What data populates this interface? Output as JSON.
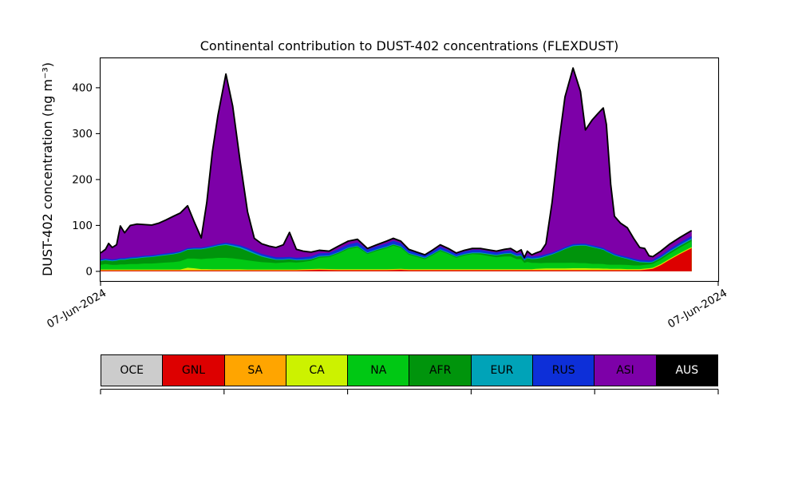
{
  "chart_data": {
    "type": "area",
    "stacked": true,
    "title": "Continental contribution to DUST-402 concentrations (FLEXDUST)",
    "xlabel": "",
    "ylabel": "DUST-402 concentration (ng m⁻³)",
    "grid": false,
    "legend_position": "bottom",
    "ylim": [
      -21,
      466
    ],
    "yticks": [
      0,
      100,
      200,
      300,
      400
    ],
    "xtick_positions": [
      0,
      1
    ],
    "xtick_labels": [
      "07-Jun-2024",
      "07-Jun-2024"
    ],
    "outline_color": "#000000",
    "x": [
      0.0,
      0.008,
      0.013,
      0.019,
      0.026,
      0.032,
      0.039,
      0.048,
      0.059,
      0.071,
      0.083,
      0.094,
      0.106,
      0.118,
      0.129,
      0.141,
      0.151,
      0.163,
      0.172,
      0.181,
      0.19,
      0.203,
      0.214,
      0.226,
      0.238,
      0.249,
      0.261,
      0.273,
      0.284,
      0.296,
      0.306,
      0.317,
      0.328,
      0.341,
      0.354,
      0.37,
      0.385,
      0.401,
      0.416,
      0.432,
      0.447,
      0.463,
      0.474,
      0.486,
      0.499,
      0.512,
      0.525,
      0.537,
      0.55,
      0.563,
      0.576,
      0.589,
      0.602,
      0.615,
      0.628,
      0.641,
      0.654,
      0.664,
      0.674,
      0.681,
      0.686,
      0.691,
      0.698,
      0.705,
      0.713,
      0.721,
      0.731,
      0.742,
      0.752,
      0.765,
      0.777,
      0.785,
      0.796,
      0.806,
      0.814,
      0.819,
      0.826,
      0.832,
      0.842,
      0.853,
      0.863,
      0.873,
      0.881,
      0.888,
      0.894,
      0.907,
      0.922,
      0.938,
      0.948,
      0.957
    ],
    "series": [
      {
        "name": "OCE",
        "color": "#cccccc",
        "values": 0.4
      },
      {
        "name": "GNL",
        "color": "#dd0000",
        "values": [
          1.5,
          1.5,
          1.5,
          1.5,
          1.5,
          1.5,
          1.5,
          1.5,
          1.5,
          1.5,
          1.5,
          1.5,
          1.5,
          1.5,
          1.5,
          1.5,
          1.5,
          1.5,
          1.5,
          1.5,
          1.5,
          1.5,
          1.5,
          1.5,
          1.5,
          1.5,
          1.5,
          1.5,
          1.5,
          1.5,
          1.5,
          1.5,
          2,
          2.5,
          3,
          2.5,
          2,
          2,
          2,
          2,
          2,
          2,
          2.5,
          3,
          2,
          2,
          2,
          2,
          2,
          2,
          2,
          2,
          2,
          2,
          2,
          2,
          2,
          2,
          2,
          2,
          2,
          2,
          2,
          2,
          2,
          2,
          2,
          2,
          2,
          2,
          2,
          2,
          2,
          2,
          2,
          2,
          2,
          2,
          2,
          2,
          2,
          2,
          3,
          4,
          5,
          13,
          25,
          37,
          44,
          50
        ]
      },
      {
        "name": "SA",
        "color": "#ffa500",
        "values": 1
      },
      {
        "name": "CA",
        "color": "#ccf200",
        "values": [
          1.2,
          1.2,
          1.2,
          1.2,
          1.2,
          1.2,
          1.2,
          1.2,
          1.2,
          1.2,
          1.2,
          1.2,
          1.2,
          1.2,
          1.2,
          5,
          4,
          2,
          2,
          1.5,
          1.5,
          1.5,
          1.5,
          1.5,
          1.2,
          1.2,
          1.2,
          1.2,
          1.2,
          1.2,
          1.2,
          1.2,
          1.2,
          1.2,
          1.2,
          1.2,
          1.2,
          1.2,
          1.2,
          1.2,
          1.2,
          1.2,
          1.2,
          1.2,
          1.2,
          1.2,
          1.2,
          1.2,
          1.2,
          1.2,
          1.2,
          1.2,
          1.2,
          1.2,
          1.2,
          1.2,
          1.2,
          1.2,
          1.2,
          1.2,
          1.2,
          1.2,
          1.2,
          2,
          2.5,
          3,
          3,
          3,
          3,
          3.5,
          3.5,
          3.5,
          3,
          3,
          2.5,
          2.5,
          2,
          2,
          2,
          1.5,
          1.5,
          1.5,
          1.5,
          1.5,
          1.5,
          1.5,
          1.5,
          1.5,
          1.5,
          1.5
        ]
      },
      {
        "name": "NA",
        "color": "#00c814",
        "values": [
          10,
          12,
          11,
          10,
          10,
          11,
          11,
          12,
          12,
          13,
          13,
          14,
          15,
          16,
          18,
          20,
          21,
          22,
          23,
          24,
          25,
          25,
          24,
          22,
          20,
          18,
          16,
          15,
          14,
          15,
          16,
          15,
          16,
          18,
          24,
          26,
          34,
          44,
          48,
          33,
          40,
          46,
          51,
          46,
          32,
          27,
          22,
          30,
          40,
          33,
          25,
          30,
          33,
          32,
          29,
          26,
          28,
          28,
          22,
          22,
          14,
          16,
          14,
          13,
          12,
          12,
          12,
          12,
          12,
          12,
          11,
          11,
          10,
          10,
          10,
          9,
          9,
          9,
          9,
          9,
          8,
          8,
          8,
          8,
          8.5,
          9.5,
          11,
          12,
          12.5,
          13
        ]
      },
      {
        "name": "AFR",
        "color": "#00940c",
        "values": [
          8,
          8,
          8,
          8,
          9,
          10,
          10,
          11,
          12,
          13,
          14,
          15,
          16,
          17,
          18,
          19,
          20,
          21,
          22,
          24,
          26,
          28,
          26,
          24,
          20,
          16,
          12,
          9,
          7,
          6,
          6,
          5,
          4,
          3,
          2.5,
          2,
          2,
          2,
          2,
          2,
          2,
          2,
          2,
          2,
          2,
          2,
          2,
          2,
          2,
          2,
          2,
          2,
          2,
          3,
          3.5,
          4,
          5,
          6,
          6,
          7,
          5,
          8,
          8,
          9,
          11,
          14,
          18,
          24,
          30,
          36,
          38,
          38,
          36,
          33,
          31,
          28,
          24,
          20,
          16,
          13,
          10,
          7,
          5.5,
          4,
          3.5,
          3.5,
          3.5,
          3.5,
          3.5,
          3.5
        ]
      },
      {
        "name": "EUR",
        "color": "#00a3b8",
        "values": [
          1.5,
          1.5,
          1.5,
          1.5,
          1.5,
          1.5,
          1.5,
          1.5,
          1.5,
          1.5,
          1.5,
          1.5,
          1.5,
          1.5,
          1.5,
          1.5,
          1.5,
          1.5,
          1.5,
          1.5,
          1.5,
          2,
          2.5,
          3,
          3,
          2.5,
          2,
          2,
          1.5,
          1.5,
          1.5,
          1.5,
          1.5,
          1.5,
          1.5,
          1.5,
          1.5,
          1.5,
          1.5,
          1.5,
          1.5,
          1.5,
          1.5,
          1.5,
          1.5,
          1.5,
          1.5,
          1.5,
          1.5,
          1.5,
          1.5,
          1.5,
          1.5,
          1.5,
          1.5,
          1.5,
          1.5,
          1.5,
          1.5,
          1.5,
          1.5,
          1.5,
          1.5,
          1.5,
          1.5,
          1.5,
          1.5,
          1.5,
          1.5,
          1.5,
          1.5,
          1.5,
          1.5,
          1.5,
          1.5,
          1.5,
          1.5,
          1.5,
          1.5,
          1.5,
          1.5,
          1.5,
          1.5,
          1.5,
          1.5,
          1.8,
          2,
          2.2,
          2.4,
          2.5
        ]
      },
      {
        "name": "RUS",
        "color": "#0d2fd8",
        "values": [
          2.5,
          2.5,
          2.5,
          2.5,
          2.5,
          2.5,
          2.5,
          2.5,
          2.5,
          2.5,
          2.5,
          2.5,
          2.5,
          2.5,
          2.5,
          2.5,
          2.5,
          2.5,
          2.5,
          2.5,
          2.5,
          3,
          3,
          3.5,
          4,
          4,
          4,
          4,
          4,
          4,
          4,
          4,
          4.5,
          5,
          5.5,
          5.5,
          6,
          6.5,
          7,
          6,
          6,
          6.5,
          7,
          6.5,
          5.5,
          5,
          4.5,
          5,
          5.5,
          5,
          4.5,
          5,
          5.5,
          5.5,
          5,
          5,
          5,
          5,
          4.5,
          4.5,
          3.5,
          4,
          4,
          4,
          4,
          3.5,
          3,
          3,
          3,
          3,
          3,
          3,
          3,
          3,
          3,
          3,
          3,
          3,
          3,
          3,
          3.5,
          3.5,
          3.5,
          3.5,
          3.5,
          4,
          4.5,
          5,
          5,
          5
        ]
      },
      {
        "name": "ASI",
        "color": "#7d00a8",
        "values": [
          13.9,
          19.9,
          33.9,
          25.9,
          30.9,
          69.9,
          54.9,
          68.9,
          70.9,
          67.9,
          65.9,
          67.9,
          72.9,
          78.9,
          82.9,
          92.1,
          58.1,
          21.1,
          96.1,
          203.6,
          280.6,
          367.6,
          300.1,
          183.1,
          78.9,
          27.4,
          21.9,
          20.9,
          21.4,
          27.4,
          53.4,
          18.4,
          13.4,
          9.4,
          6.9,
          3.9,
          6.9,
          7.4,
          6.9,
          2.9,
          3.9,
          5.4,
          5.4,
          4.4,
          2.4,
          1.9,
          1.4,
          2.9,
          4.4,
          3.9,
          2.4,
          2.9,
          3.4,
          3.4,
          3.4,
          2.9,
          3.9,
          4.9,
          3.4,
          7.4,
          1.4,
          9.9,
          3.9,
          7.1,
          9.6,
          22.6,
          109.1,
          233.1,
          327.1,
          383.6,
          331.6,
          247.6,
          273.1,
          291.1,
          304.6,
          272.6,
          147.1,
          81.1,
          70.1,
          63.6,
          44.1,
          27.1,
          25.6,
          10.1,
          7.1,
          9.3,
          11.1,
          11.4,
          11.7,
          12.1
        ]
      },
      {
        "name": "AUS",
        "color": "#000000",
        "values": 0
      }
    ],
    "legend": {
      "axis_tick_count": 6,
      "entries": [
        {
          "label": "OCE",
          "color": "#cccccc",
          "text_color": "#000000"
        },
        {
          "label": "GNL",
          "color": "#dd0000",
          "text_color": "#000000"
        },
        {
          "label": "SA",
          "color": "#ffa500",
          "text_color": "#000000"
        },
        {
          "label": "CA",
          "color": "#ccf200",
          "text_color": "#000000"
        },
        {
          "label": "NA",
          "color": "#00c814",
          "text_color": "#000000"
        },
        {
          "label": "AFR",
          "color": "#00940c",
          "text_color": "#000000"
        },
        {
          "label": "EUR",
          "color": "#00a3b8",
          "text_color": "#000000"
        },
        {
          "label": "RUS",
          "color": "#0d2fd8",
          "text_color": "#000000"
        },
        {
          "label": "ASI",
          "color": "#7d00a8",
          "text_color": "#000000"
        },
        {
          "label": "AUS",
          "color": "#000000",
          "text_color": "#ffffff"
        }
      ]
    }
  }
}
